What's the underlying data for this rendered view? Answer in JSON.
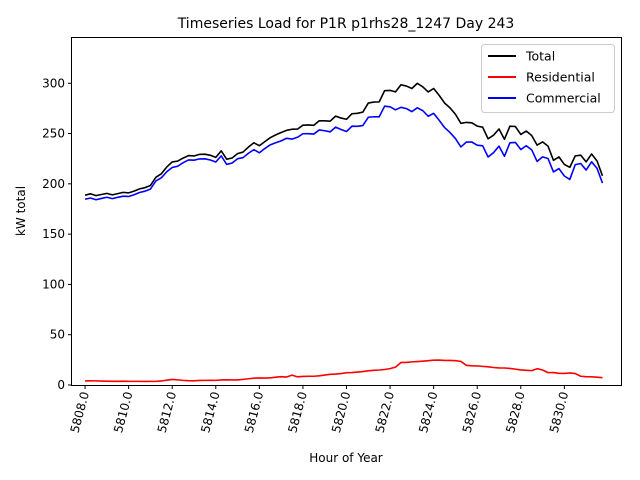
{
  "chart_data": {
    "type": "line",
    "title": "Timeseries Load for P1R p1rhs28_1247  Day 243",
    "xlabel": "Hour of Year",
    "ylabel": "kW total",
    "xlim": [
      5807.4,
      5832.6
    ],
    "ylim": [
      0,
      345
    ],
    "xticks": [
      5808.0,
      5810.0,
      5812.0,
      5814.0,
      5816.0,
      5818.0,
      5820.0,
      5822.0,
      5824.0,
      5826.0,
      5828.0,
      5830.0
    ],
    "xtick_labels": [
      "5808.0",
      "5810.0",
      "5812.0",
      "5814.0",
      "5816.0",
      "5818.0",
      "5820.0",
      "5822.0",
      "5824.0",
      "5826.0",
      "5828.0",
      "5830.0"
    ],
    "yticks": [
      0,
      50,
      100,
      150,
      200,
      250,
      300
    ],
    "ytick_labels": [
      "0",
      "50",
      "100",
      "150",
      "200",
      "250",
      "300"
    ],
    "grid": false,
    "legend_position": "top-right",
    "x_start": 5808.0,
    "x_step": 0.25,
    "series": [
      {
        "name": "Total",
        "color": "#000000",
        "values": [
          188.7,
          190.1,
          188.3,
          189.4,
          190.5,
          189.0,
          190.3,
          191.5,
          191.0,
          192.8,
          195.0,
          196.2,
          198.4,
          206.5,
          210.0,
          216.8,
          221.8,
          222.6,
          225.6,
          228.1,
          227.7,
          229.3,
          229.5,
          228.4,
          226.3,
          232.8,
          224.5,
          225.7,
          230.0,
          231.6,
          236.6,
          240.8,
          237.9,
          242.0,
          245.9,
          248.7,
          251.0,
          253.2,
          254.3,
          254.4,
          258.3,
          258.6,
          258.2,
          262.7,
          262.7,
          262.3,
          267.3,
          265.4,
          264.2,
          269.7,
          270.1,
          271.3,
          280.3,
          281.3,
          281.5,
          292.6,
          292.9,
          291.4,
          298.5,
          297.2,
          294.8,
          299.9,
          296.5,
          291.4,
          294.8,
          288.1,
          280.4,
          275.5,
          269.2,
          260.2,
          261.1,
          260.7,
          257.4,
          256.3,
          244.8,
          248.4,
          254.5,
          244.3,
          257.3,
          257.0,
          249.1,
          252.5,
          248.1,
          238.5,
          241.7,
          237.5,
          223.4,
          226.8,
          219.3,
          216.4,
          227.8,
          228.5,
          221.8,
          229.7,
          222.7,
          208.0
        ]
      },
      {
        "name": "Residential",
        "color": "#ff0000",
        "values": [
          4.0,
          4.2,
          4.1,
          3.9,
          3.8,
          3.7,
          3.7,
          3.8,
          3.6,
          3.6,
          3.6,
          3.5,
          3.6,
          3.6,
          4.0,
          4.8,
          5.5,
          5.1,
          4.6,
          4.3,
          4.2,
          4.5,
          4.6,
          4.7,
          4.6,
          5.0,
          5.2,
          5.0,
          5.0,
          5.6,
          6.2,
          6.8,
          7.0,
          6.9,
          7.1,
          7.8,
          8.3,
          7.9,
          9.8,
          8.1,
          8.5,
          8.7,
          8.7,
          9.1,
          9.9,
          10.6,
          10.9,
          11.4,
          12.2,
          12.4,
          12.9,
          13.4,
          14.1,
          14.6,
          14.9,
          15.4,
          16.3,
          17.8,
          22.4,
          22.4,
          23.0,
          23.3,
          23.7,
          24.2,
          24.7,
          24.8,
          24.4,
          24.4,
          24.2,
          23.5,
          19.6,
          19.1,
          19.0,
          18.5,
          18.1,
          17.4,
          17.0,
          16.9,
          16.5,
          15.8,
          15.0,
          14.6,
          14.3,
          16.2,
          14.9,
          12.3,
          12.4,
          11.6,
          11.5,
          12.0,
          11.4,
          8.7,
          8.3,
          8.1,
          7.8,
          7.3
        ]
      },
      {
        "name": "Commercial",
        "color": "#0000ff",
        "values": [
          184.7,
          185.9,
          184.2,
          185.5,
          186.7,
          185.3,
          186.6,
          187.7,
          187.4,
          189.2,
          191.4,
          192.7,
          194.8,
          202.9,
          206.0,
          212.0,
          216.3,
          217.5,
          221.0,
          223.8,
          223.5,
          224.8,
          224.9,
          223.7,
          221.7,
          227.8,
          219.3,
          220.7,
          225.0,
          226.0,
          230.4,
          234.0,
          230.9,
          235.1,
          238.8,
          240.9,
          242.7,
          245.3,
          244.5,
          246.3,
          249.8,
          249.9,
          249.5,
          253.6,
          252.8,
          251.7,
          256.4,
          254.0,
          252.0,
          257.3,
          257.2,
          257.9,
          266.2,
          266.7,
          266.6,
          277.2,
          276.6,
          273.6,
          276.1,
          274.8,
          271.8,
          275.6,
          272.8,
          267.2,
          270.1,
          263.3,
          256.0,
          251.1,
          245.0,
          236.7,
          241.5,
          241.6,
          238.4,
          237.8,
          226.7,
          231.0,
          237.5,
          227.4,
          240.8,
          241.2,
          234.1,
          237.9,
          233.8,
          222.3,
          226.8,
          225.2,
          211.8,
          215.2,
          207.8,
          204.4,
          219.1,
          220.2,
          213.7,
          221.9,
          215.4,
          200.7
        ]
      }
    ]
  }
}
